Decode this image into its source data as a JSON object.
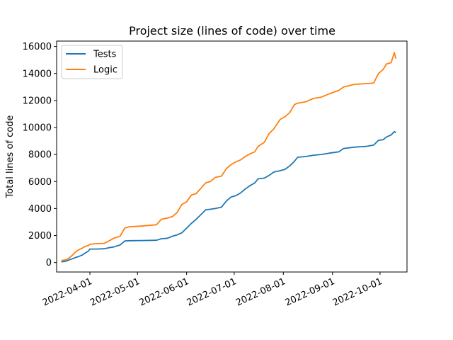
{
  "chart_data": {
    "type": "line",
    "title": "Project size (lines of code) over time",
    "xlabel": "",
    "ylabel": "Total lines of code",
    "xlim": [
      "2022-03-11",
      "2022-10-18"
    ],
    "ylim": [
      -700,
      16400
    ],
    "x_ticks": [
      "2022-04-01",
      "2022-05-01",
      "2022-06-01",
      "2022-07-01",
      "2022-08-01",
      "2022-09-01",
      "2022-10-01"
    ],
    "y_ticks": [
      0,
      2000,
      4000,
      6000,
      8000,
      10000,
      12000,
      14000,
      16000
    ],
    "y_tick_labels": [
      "0",
      "2000",
      "4000",
      "6000",
      "8000",
      "10000",
      "12000",
      "14000",
      "16000"
    ],
    "grid": false,
    "legend_position": "top-left",
    "series": [
      {
        "name": "Tests",
        "color": "#1f77b4",
        "points": [
          [
            "2022-03-14",
            50
          ],
          [
            "2022-03-17",
            100
          ],
          [
            "2022-03-19",
            200
          ],
          [
            "2022-03-21",
            280
          ],
          [
            "2022-03-23",
            380
          ],
          [
            "2022-03-25",
            450
          ],
          [
            "2022-03-27",
            550
          ],
          [
            "2022-03-29",
            700
          ],
          [
            "2022-03-31",
            850
          ],
          [
            "2022-04-01",
            1000
          ],
          [
            "2022-04-05",
            1000
          ],
          [
            "2022-04-10",
            1020
          ],
          [
            "2022-04-13",
            1100
          ],
          [
            "2022-04-16",
            1150
          ],
          [
            "2022-04-20",
            1300
          ],
          [
            "2022-04-23",
            1600
          ],
          [
            "2022-04-26",
            1620
          ],
          [
            "2022-05-03",
            1630
          ],
          [
            "2022-05-13",
            1650
          ],
          [
            "2022-05-16",
            1760
          ],
          [
            "2022-05-20",
            1800
          ],
          [
            "2022-05-23",
            1950
          ],
          [
            "2022-05-26",
            2050
          ],
          [
            "2022-05-29",
            2200
          ],
          [
            "2022-06-01",
            2550
          ],
          [
            "2022-06-04",
            2900
          ],
          [
            "2022-06-07",
            3200
          ],
          [
            "2022-06-10",
            3550
          ],
          [
            "2022-06-13",
            3900
          ],
          [
            "2022-06-16",
            3950
          ],
          [
            "2022-06-19",
            4000
          ],
          [
            "2022-06-23",
            4100
          ],
          [
            "2022-06-26",
            4550
          ],
          [
            "2022-06-29",
            4850
          ],
          [
            "2022-07-02",
            4950
          ],
          [
            "2022-07-05",
            5150
          ],
          [
            "2022-07-08",
            5450
          ],
          [
            "2022-07-11",
            5700
          ],
          [
            "2022-07-14",
            5900
          ],
          [
            "2022-07-16",
            6200
          ],
          [
            "2022-07-20",
            6250
          ],
          [
            "2022-07-23",
            6450
          ],
          [
            "2022-07-26",
            6700
          ],
          [
            "2022-07-30",
            6800
          ],
          [
            "2022-08-02",
            6900
          ],
          [
            "2022-08-05",
            7150
          ],
          [
            "2022-08-08",
            7500
          ],
          [
            "2022-08-10",
            7800
          ],
          [
            "2022-08-15",
            7850
          ],
          [
            "2022-08-20",
            7950
          ],
          [
            "2022-08-25",
            8000
          ],
          [
            "2022-08-30",
            8100
          ],
          [
            "2022-09-05",
            8200
          ],
          [
            "2022-09-08",
            8450
          ],
          [
            "2022-09-15",
            8550
          ],
          [
            "2022-09-22",
            8600
          ],
          [
            "2022-09-27",
            8700
          ],
          [
            "2022-09-30",
            9050
          ],
          [
            "2022-10-03",
            9100
          ],
          [
            "2022-10-05",
            9300
          ],
          [
            "2022-10-08",
            9450
          ],
          [
            "2022-10-10",
            9700
          ],
          [
            "2022-10-11",
            9600
          ]
        ]
      },
      {
        "name": "Logic",
        "color": "#ff7f0e",
        "points": [
          [
            "2022-03-14",
            150
          ],
          [
            "2022-03-17",
            200
          ],
          [
            "2022-03-19",
            350
          ],
          [
            "2022-03-21",
            550
          ],
          [
            "2022-03-23",
            800
          ],
          [
            "2022-03-25",
            950
          ],
          [
            "2022-03-27",
            1050
          ],
          [
            "2022-03-29",
            1200
          ],
          [
            "2022-03-31",
            1250
          ],
          [
            "2022-04-01",
            1350
          ],
          [
            "2022-04-05",
            1400
          ],
          [
            "2022-04-10",
            1420
          ],
          [
            "2022-04-13",
            1600
          ],
          [
            "2022-04-16",
            1800
          ],
          [
            "2022-04-20",
            1950
          ],
          [
            "2022-04-23",
            2550
          ],
          [
            "2022-04-26",
            2650
          ],
          [
            "2022-05-03",
            2700
          ],
          [
            "2022-05-13",
            2800
          ],
          [
            "2022-05-16",
            3200
          ],
          [
            "2022-05-20",
            3300
          ],
          [
            "2022-05-23",
            3400
          ],
          [
            "2022-05-26",
            3700
          ],
          [
            "2022-05-29",
            4300
          ],
          [
            "2022-06-01",
            4500
          ],
          [
            "2022-06-04",
            5000
          ],
          [
            "2022-06-07",
            5100
          ],
          [
            "2022-06-10",
            5500
          ],
          [
            "2022-06-13",
            5900
          ],
          [
            "2022-06-16",
            6000
          ],
          [
            "2022-06-19",
            6300
          ],
          [
            "2022-06-23",
            6400
          ],
          [
            "2022-06-26",
            6950
          ],
          [
            "2022-06-29",
            7250
          ],
          [
            "2022-07-02",
            7450
          ],
          [
            "2022-07-05",
            7600
          ],
          [
            "2022-07-08",
            7850
          ],
          [
            "2022-07-11",
            8050
          ],
          [
            "2022-07-14",
            8200
          ],
          [
            "2022-07-16",
            8600
          ],
          [
            "2022-07-20",
            8900
          ],
          [
            "2022-07-23",
            9550
          ],
          [
            "2022-07-26",
            9900
          ],
          [
            "2022-07-30",
            10600
          ],
          [
            "2022-08-02",
            10800
          ],
          [
            "2022-08-05",
            11100
          ],
          [
            "2022-08-08",
            11700
          ],
          [
            "2022-08-10",
            11800
          ],
          [
            "2022-08-15",
            11900
          ],
          [
            "2022-08-20",
            12150
          ],
          [
            "2022-08-25",
            12250
          ],
          [
            "2022-08-30",
            12500
          ],
          [
            "2022-09-05",
            12750
          ],
          [
            "2022-09-08",
            13000
          ],
          [
            "2022-09-15",
            13200
          ],
          [
            "2022-09-22",
            13250
          ],
          [
            "2022-09-27",
            13300
          ],
          [
            "2022-09-30",
            14000
          ],
          [
            "2022-10-03",
            14300
          ],
          [
            "2022-10-05",
            14700
          ],
          [
            "2022-10-08",
            14800
          ],
          [
            "2022-10-10",
            15550
          ],
          [
            "2022-10-11",
            15100
          ]
        ]
      }
    ]
  }
}
